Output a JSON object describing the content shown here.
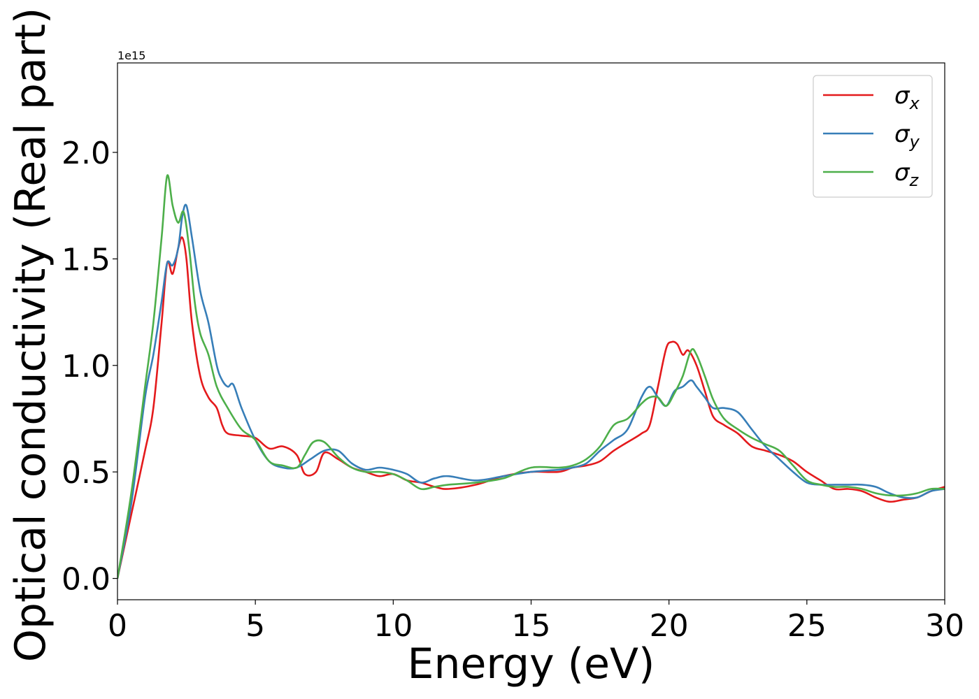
{
  "chart_data": {
    "type": "line",
    "xlabel": "Energy (eV)",
    "ylabel": "Optical conductivity (Real part)",
    "y_offset_text": "1e15",
    "xlim": [
      0,
      30
    ],
    "ylim": [
      -0.1,
      2.42
    ],
    "xticks": [
      0,
      5,
      10,
      15,
      20,
      25,
      30
    ],
    "xtick_labels": [
      "0",
      "5",
      "10",
      "15",
      "20",
      "25",
      "30"
    ],
    "yticks": [
      0.0,
      0.5,
      1.0,
      1.5,
      2.0
    ],
    "ytick_labels": [
      "0.0",
      "0.5",
      "1.0",
      "1.5",
      "2.0"
    ],
    "grid": false,
    "legend_position": "top-right",
    "series": [
      {
        "name": "σx",
        "symbol": "σ",
        "subscript": "x",
        "color": "#e41a1c",
        "x": [
          0,
          0.5,
          1.0,
          1.3,
          1.6,
          1.8,
          2.0,
          2.2,
          2.35,
          2.5,
          2.7,
          3.0,
          3.3,
          3.6,
          3.8,
          4.0,
          4.5,
          5.0,
          5.5,
          6.0,
          6.5,
          6.8,
          7.2,
          7.5,
          8.0,
          8.5,
          9.0,
          9.5,
          10.0,
          10.5,
          11.0,
          11.5,
          12.0,
          13.0,
          14.0,
          15.0,
          16.0,
          16.5,
          17.0,
          17.5,
          18.0,
          18.5,
          19.0,
          19.3,
          19.6,
          19.9,
          20.1,
          20.3,
          20.5,
          20.7,
          21.0,
          21.3,
          21.6,
          22.0,
          22.5,
          23.0,
          23.5,
          24.0,
          24.5,
          25.0,
          25.5,
          26.0,
          26.5,
          27.0,
          27.5,
          28.0,
          28.5,
          29.0,
          29.5,
          30.0
        ],
        "y": [
          0.0,
          0.3,
          0.6,
          0.8,
          1.2,
          1.48,
          1.43,
          1.55,
          1.6,
          1.5,
          1.2,
          0.95,
          0.85,
          0.8,
          0.72,
          0.68,
          0.67,
          0.66,
          0.61,
          0.62,
          0.58,
          0.49,
          0.5,
          0.59,
          0.56,
          0.52,
          0.5,
          0.48,
          0.49,
          0.46,
          0.45,
          0.43,
          0.42,
          0.44,
          0.48,
          0.5,
          0.5,
          0.52,
          0.53,
          0.55,
          0.6,
          0.64,
          0.68,
          0.72,
          0.9,
          1.08,
          1.11,
          1.1,
          1.05,
          1.07,
          1.0,
          0.88,
          0.76,
          0.72,
          0.68,
          0.62,
          0.6,
          0.58,
          0.55,
          0.5,
          0.46,
          0.42,
          0.42,
          0.41,
          0.38,
          0.36,
          0.37,
          0.38,
          0.41,
          0.43
        ]
      },
      {
        "name": "σy",
        "symbol": "σ",
        "subscript": "y",
        "color": "#377eb8",
        "x": [
          0,
          0.5,
          1.0,
          1.3,
          1.6,
          1.8,
          2.0,
          2.2,
          2.35,
          2.5,
          2.7,
          3.0,
          3.3,
          3.6,
          3.8,
          4.0,
          4.2,
          4.5,
          5.0,
          5.5,
          6.0,
          6.5,
          7.0,
          7.5,
          8.0,
          8.5,
          9.0,
          9.5,
          10.0,
          10.5,
          11.0,
          11.5,
          12.0,
          13.0,
          14.0,
          15.0,
          16.0,
          16.5,
          17.0,
          17.5,
          18.0,
          18.5,
          19.0,
          19.3,
          19.6,
          19.9,
          20.2,
          20.5,
          20.8,
          21.0,
          21.3,
          21.6,
          22.0,
          22.5,
          23.0,
          23.5,
          24.0,
          24.5,
          25.0,
          25.5,
          26.0,
          26.5,
          27.0,
          27.5,
          28.0,
          28.5,
          29.0,
          29.5,
          30.0
        ],
        "y": [
          0.0,
          0.35,
          0.85,
          1.05,
          1.3,
          1.48,
          1.47,
          1.55,
          1.7,
          1.75,
          1.6,
          1.35,
          1.2,
          1.0,
          0.93,
          0.9,
          0.91,
          0.8,
          0.65,
          0.55,
          0.52,
          0.52,
          0.56,
          0.6,
          0.6,
          0.54,
          0.51,
          0.52,
          0.51,
          0.49,
          0.45,
          0.47,
          0.48,
          0.46,
          0.48,
          0.5,
          0.51,
          0.52,
          0.54,
          0.6,
          0.65,
          0.7,
          0.85,
          0.9,
          0.85,
          0.81,
          0.88,
          0.9,
          0.93,
          0.9,
          0.85,
          0.8,
          0.8,
          0.78,
          0.7,
          0.62,
          0.56,
          0.5,
          0.45,
          0.44,
          0.44,
          0.44,
          0.44,
          0.43,
          0.4,
          0.38,
          0.38,
          0.41,
          0.42
        ]
      },
      {
        "name": "σz",
        "symbol": "σ",
        "subscript": "z",
        "color": "#4daf4a",
        "x": [
          0,
          0.5,
          1.0,
          1.3,
          1.6,
          1.8,
          2.0,
          2.2,
          2.4,
          2.6,
          2.8,
          3.0,
          3.3,
          3.6,
          4.0,
          4.5,
          5.0,
          5.5,
          6.0,
          6.5,
          6.8,
          7.1,
          7.5,
          8.0,
          8.5,
          9.0,
          9.5,
          10.0,
          10.5,
          11.0,
          11.5,
          12.0,
          13.0,
          14.0,
          15.0,
          16.0,
          16.5,
          17.0,
          17.5,
          18.0,
          18.5,
          19.0,
          19.3,
          19.6,
          19.9,
          20.2,
          20.5,
          20.8,
          21.0,
          21.3,
          21.6,
          22.0,
          22.5,
          23.0,
          23.5,
          24.0,
          24.5,
          25.0,
          25.5,
          26.0,
          26.5,
          27.0,
          27.5,
          28.0,
          28.5,
          29.0,
          29.5,
          30.0
        ],
        "y": [
          0.0,
          0.4,
          0.9,
          1.2,
          1.6,
          1.89,
          1.75,
          1.67,
          1.72,
          1.55,
          1.3,
          1.15,
          1.05,
          0.9,
          0.8,
          0.7,
          0.65,
          0.55,
          0.53,
          0.52,
          0.58,
          0.64,
          0.64,
          0.57,
          0.52,
          0.5,
          0.5,
          0.49,
          0.46,
          0.42,
          0.43,
          0.44,
          0.45,
          0.47,
          0.52,
          0.52,
          0.53,
          0.56,
          0.62,
          0.72,
          0.75,
          0.82,
          0.85,
          0.85,
          0.81,
          0.87,
          0.95,
          1.07,
          1.05,
          0.95,
          0.84,
          0.75,
          0.7,
          0.66,
          0.63,
          0.6,
          0.53,
          0.46,
          0.44,
          0.43,
          0.43,
          0.42,
          0.4,
          0.39,
          0.39,
          0.4,
          0.42,
          0.42
        ]
      }
    ]
  }
}
